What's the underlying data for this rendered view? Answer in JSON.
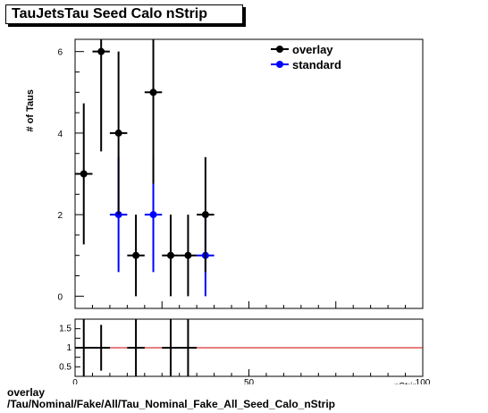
{
  "title": "TauJetsTau Seed Calo nStrip",
  "footer": {
    "line1": "overlay",
    "line2": "/Tau/Nominal/Fake/All/Tau_Nominal_Fake_All_Seed_Calo_nStrip"
  },
  "chart_data": [
    {
      "type": "scatter",
      "title": "TauJetsTau Seed Calo nStrip",
      "ylabel": "# of Taus",
      "xlabel": "nStrip",
      "xlim": [
        0,
        100
      ],
      "ylim": [
        -0.3,
        6.3
      ],
      "yticks": [
        0,
        2,
        4,
        6
      ],
      "legend_position": "top-right",
      "series": [
        {
          "name": "overlay",
          "color": "#000000",
          "points": [
            {
              "x": 2.5,
              "y": 3,
              "err": 1.73
            },
            {
              "x": 7.5,
              "y": 6,
              "err": 2.45
            },
            {
              "x": 12.5,
              "y": 4,
              "err": 2.0
            },
            {
              "x": 17.5,
              "y": 1,
              "err": 1.0
            },
            {
              "x": 22.5,
              "y": 5,
              "err": 2.24
            },
            {
              "x": 27.5,
              "y": 1,
              "err": 1.0
            },
            {
              "x": 32.5,
              "y": 1,
              "err": 1.0
            },
            {
              "x": 37.5,
              "y": 2,
              "err": 1.41
            }
          ]
        },
        {
          "name": "standard",
          "color": "#0000ff",
          "points": [
            {
              "x": 12.5,
              "y": 2,
              "err": 1.41
            },
            {
              "x": 22.5,
              "y": 2,
              "err": 1.41
            },
            {
              "x": 37.5,
              "y": 1,
              "err": 1.0
            }
          ]
        }
      ]
    },
    {
      "type": "scatter",
      "xlabel": "nStrip",
      "xlim": [
        0,
        100
      ],
      "ylim": [
        0.25,
        1.75
      ],
      "yticks": [
        0.5,
        1,
        1.5
      ],
      "ytick_labels": [
        "0.5",
        "1",
        "1.5"
      ],
      "xticks": [
        0,
        50,
        100
      ],
      "reference_line": {
        "y": 1,
        "color": "#cc0000"
      },
      "series": [
        {
          "name": "ratio",
          "color": "#000000",
          "points": [
            {
              "x": 2.5,
              "y": 1,
              "err": 1.6
            },
            {
              "x": 7.5,
              "y": 1,
              "err": 0.6
            },
            {
              "x": 17.5,
              "y": 1,
              "err": 1.6
            },
            {
              "x": 27.5,
              "y": 1,
              "err": 1.6
            },
            {
              "x": 32.5,
              "y": 1,
              "err": 1.6
            }
          ]
        }
      ]
    }
  ]
}
